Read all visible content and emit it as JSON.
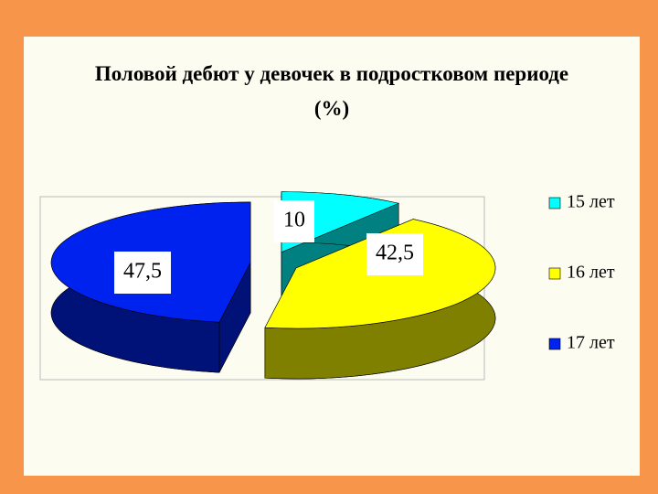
{
  "chart_data": {
    "type": "pie",
    "title": "Половой дебют у девочек в подростковом периоде (%)",
    "categories": [
      "15 лет",
      "16 лет",
      "17 лет"
    ],
    "values": [
      10,
      42.5,
      47.5
    ],
    "value_labels": [
      "10",
      "42,5",
      "47,5"
    ],
    "colors": [
      "#00ffff",
      "#ffff00",
      "#0022ee"
    ],
    "legend": "right"
  }
}
